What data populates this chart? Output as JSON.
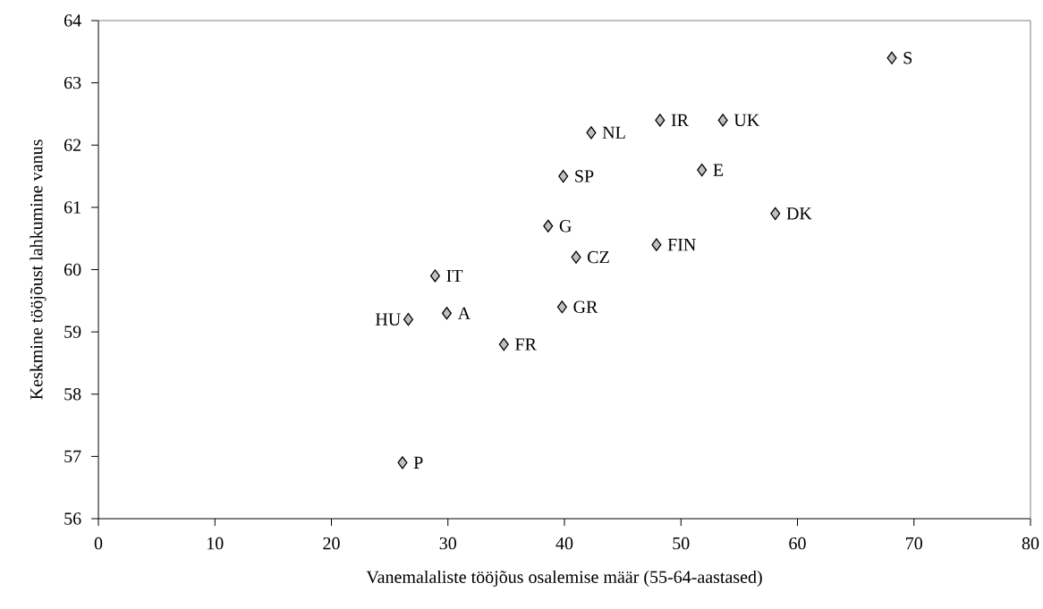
{
  "chart_data": {
    "type": "scatter",
    "xlabel": "Vanemalaliste tööjõus osalemise määr (55-64-aastased)",
    "ylabel": "Keskmine tööjõust lahkumine vanus",
    "x": [
      68.1,
      42.3,
      48.2,
      53.6,
      39.9,
      51.8,
      58.1,
      38.6,
      47.9,
      41.0,
      28.9,
      39.8,
      26.6,
      29.9,
      34.8,
      26.1
    ],
    "values": [
      63.4,
      62.2,
      62.4,
      62.4,
      61.5,
      61.6,
      60.9,
      60.7,
      60.4,
      60.2,
      59.9,
      59.4,
      59.2,
      59.3,
      58.8,
      56.9
    ],
    "color": "#c0c0c0",
    "marker": "diamond",
    "xlim": [
      0,
      80
    ],
    "ylim": [
      56,
      64
    ],
    "xticks": [
      0,
      10,
      20,
      30,
      40,
      50,
      60,
      70,
      80
    ],
    "yticks": [
      56,
      57,
      58,
      59,
      60,
      61,
      62,
      63,
      64
    ],
    "annotations": [
      {
        "text": "S",
        "x": 68.1,
        "y": 63.4
      },
      {
        "text": "NL",
        "x": 42.3,
        "y": 62.2
      },
      {
        "text": "IR",
        "x": 48.2,
        "y": 62.4
      },
      {
        "text": "UK",
        "x": 53.6,
        "y": 62.4
      },
      {
        "text": "SP",
        "x": 39.9,
        "y": 61.5
      },
      {
        "text": "E",
        "x": 51.8,
        "y": 61.6
      },
      {
        "text": "DK",
        "x": 58.1,
        "y": 60.9
      },
      {
        "text": "G",
        "x": 38.6,
        "y": 60.7
      },
      {
        "text": "FIN",
        "x": 47.9,
        "y": 60.4
      },
      {
        "text": "CZ",
        "x": 41.0,
        "y": 60.2
      },
      {
        "text": "IT",
        "x": 28.9,
        "y": 59.9
      },
      {
        "text": "GR",
        "x": 39.8,
        "y": 59.4
      },
      {
        "text": "HU",
        "x": 26.6,
        "y": 59.2
      },
      {
        "text": "A",
        "x": 29.9,
        "y": 59.3
      },
      {
        "text": "FR",
        "x": 34.8,
        "y": 58.8
      },
      {
        "text": "P",
        "x": 26.1,
        "y": 56.9
      }
    ]
  }
}
